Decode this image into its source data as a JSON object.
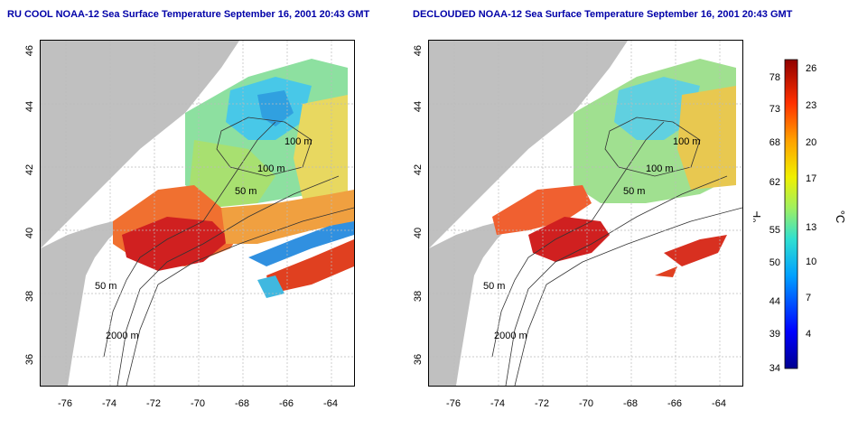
{
  "left_panel": {
    "title": "RU COOL NOAA-12 Sea Surface Temperature September 16, 2001 20:43 GMT"
  },
  "right_panel": {
    "title": "DECLOUDED NOAA-12 Sea Surface Temperature September 16, 2001 20:43 GMT"
  },
  "map": {
    "lon_ticks": [
      "-76",
      "-74",
      "-72",
      "-70",
      "-68",
      "-66",
      "-64"
    ],
    "lat_ticks": [
      "46",
      "44",
      "42",
      "40",
      "38",
      "36"
    ],
    "contour_labels": [
      "100 m",
      "100 m",
      "50 m",
      "50 m",
      "2000 m"
    ],
    "colors": {
      "land": "#c0c0c0",
      "ocean_missing": "#ffffff"
    }
  },
  "colorbar": {
    "fahrenheit_ticks": [
      "78",
      "73",
      "68",
      "62",
      "55",
      "50",
      "44",
      "39",
      "34"
    ],
    "celsius_ticks": [
      "26",
      "23",
      "20",
      "17",
      "13",
      "10",
      "7",
      "4"
    ],
    "fahrenheit_unit": "°F",
    "celsius_unit": "°C"
  }
}
